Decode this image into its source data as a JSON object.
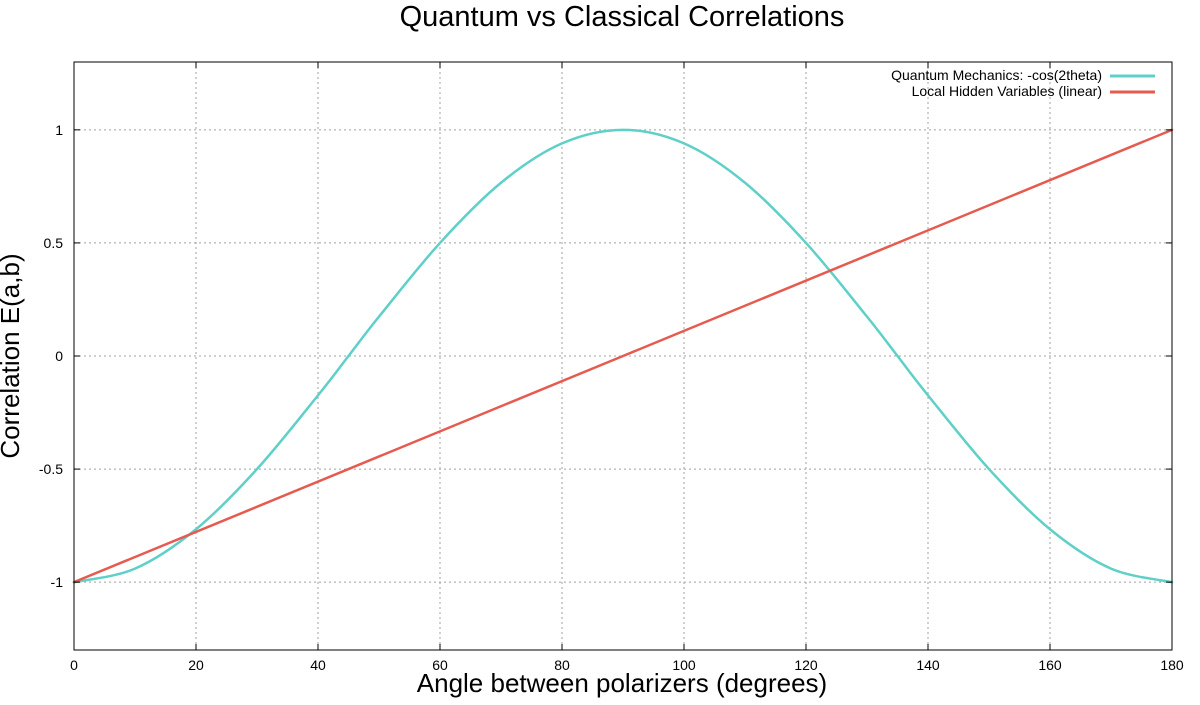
{
  "chart_data": {
    "type": "line",
    "title": "Quantum vs Classical Correlations",
    "xlabel": "Angle between polarizers (degrees)",
    "ylabel": "Correlation E(a,b)",
    "xlim": [
      0,
      180
    ],
    "ylim": [
      -1.3,
      1.3
    ],
    "xticks": [
      0,
      20,
      40,
      60,
      80,
      100,
      120,
      140,
      160,
      180
    ],
    "yticks": [
      -1,
      -0.5,
      0,
      0.5,
      1
    ],
    "xtick_labels": [
      "0",
      "20",
      "40",
      "60",
      "80",
      "100",
      "120",
      "140",
      "160",
      "180"
    ],
    "ytick_labels": [
      "-1",
      "-0.5",
      "0",
      "0.5",
      "1"
    ],
    "grid": true,
    "legend_position": "top-right",
    "series": [
      {
        "name": "Quantum Mechanics: -cos(2theta)",
        "color": "#5fd0c8",
        "x": [
          0,
          10,
          20,
          30,
          40,
          45,
          50,
          60,
          70,
          80,
          90,
          100,
          110,
          120,
          130,
          135,
          140,
          150,
          160,
          170,
          180
        ],
        "y": [
          -1,
          -0.94,
          -0.766,
          -0.5,
          -0.174,
          0,
          0.174,
          0.5,
          0.766,
          0.94,
          1,
          0.94,
          0.766,
          0.5,
          0.174,
          0,
          -0.174,
          -0.5,
          -0.766,
          -0.94,
          -1
        ]
      },
      {
        "name": "Local Hidden Variables (linear)",
        "color": "#e55b4f",
        "x": [
          0,
          90,
          180
        ],
        "y": [
          -1,
          0,
          1
        ]
      }
    ]
  }
}
